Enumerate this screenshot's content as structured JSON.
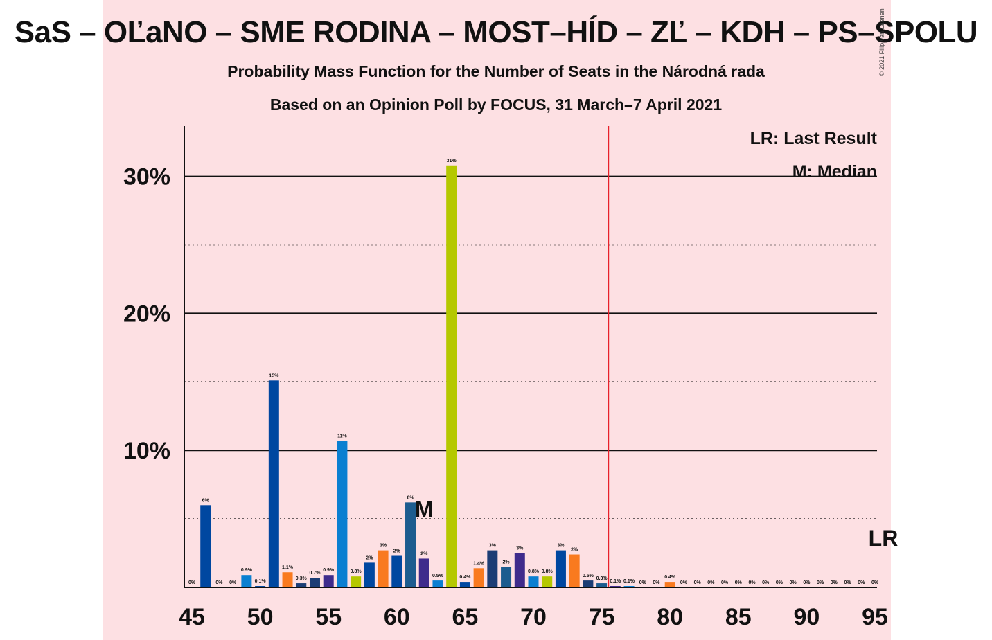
{
  "header": {
    "title": "SaS – OĽaNO – SME RODINA – MOST–HÍD – ZĽ – KDH – PS–SPOLU",
    "subtitle": "Probability Mass Function for the Number of Seats in the Národná rada",
    "subtitle2": "Based on an Opinion Poll by FOCUS, 31 March–7 April 2021",
    "copyright": "© 2021 Filip van Laenen"
  },
  "legend": {
    "last_result": "LR: Last Result",
    "median": "M: Median"
  },
  "colors": {
    "background_band": "#fde0e3",
    "majority_line": "#e8202a",
    "median_highlight": "#b5c800"
  },
  "chart_data": {
    "type": "bar",
    "title": "Probability Mass Function for the Number of Seats in the Národná rada",
    "xlim": [
      45,
      95
    ],
    "ylim": [
      0,
      33
    ],
    "x_tick_labels": [
      "45",
      "50",
      "55",
      "60",
      "65",
      "70",
      "75",
      "80",
      "85",
      "90",
      "95"
    ],
    "y_tick_labels": [
      "10%",
      "20%",
      "30%"
    ],
    "y_ticks_solid": [
      10,
      20,
      30
    ],
    "y_ticks_dotted": [
      5,
      15,
      25
    ],
    "majority_threshold": 76,
    "median_seat": 62,
    "median_label": "M",
    "last_result_seat": 95,
    "last_result_label": "LR",
    "bars": [
      {
        "x": 45,
        "value": 0.0,
        "label": "0%",
        "color": "#0047a0"
      },
      {
        "x": 46,
        "value": 6.0,
        "label": "6%",
        "color": "#0047a0"
      },
      {
        "x": 47,
        "value": 0.0,
        "label": "0%",
        "color": "#0047a0"
      },
      {
        "x": 48,
        "value": 0.0,
        "label": "0%",
        "color": "#0047a0"
      },
      {
        "x": 49,
        "value": 0.9,
        "label": "0.9%",
        "color": "#0a7fd1"
      },
      {
        "x": 50,
        "value": 0.1,
        "label": "0.1%",
        "color": "#0047a0"
      },
      {
        "x": 51,
        "value": 15.1,
        "label": "15%",
        "color": "#0047a0"
      },
      {
        "x": 52,
        "value": 1.1,
        "label": "1.1%",
        "color": "#f97a1f"
      },
      {
        "x": 53,
        "value": 0.3,
        "label": "0.3%",
        "color": "#1c3d75"
      },
      {
        "x": 54,
        "value": 0.7,
        "label": "0.7%",
        "color": "#1c3d75"
      },
      {
        "x": 55,
        "value": 0.9,
        "label": "0.9%",
        "color": "#3f2b8c"
      },
      {
        "x": 56,
        "value": 10.7,
        "label": "11%",
        "color": "#0a7fd1"
      },
      {
        "x": 57,
        "value": 0.8,
        "label": "0.8%",
        "color": "#b5c800"
      },
      {
        "x": 58,
        "value": 1.8,
        "label": "2%",
        "color": "#0047a0"
      },
      {
        "x": 59,
        "value": 2.7,
        "label": "3%",
        "color": "#f97a1f"
      },
      {
        "x": 60,
        "value": 2.3,
        "label": "2%",
        "color": "#0047a0"
      },
      {
        "x": 61,
        "value": 6.2,
        "label": "6%",
        "color": "#1c5c8f"
      },
      {
        "x": 62,
        "value": 2.1,
        "label": "2%",
        "color": "#3f2b8c"
      },
      {
        "x": 63,
        "value": 0.5,
        "label": "0.5%",
        "color": "#0a7fd1"
      },
      {
        "x": 64,
        "value": 30.8,
        "label": "31%",
        "color": "#b5c800"
      },
      {
        "x": 65,
        "value": 0.4,
        "label": "0.4%",
        "color": "#0047a0"
      },
      {
        "x": 66,
        "value": 1.4,
        "label": "1.4%",
        "color": "#f97a1f"
      },
      {
        "x": 67,
        "value": 2.7,
        "label": "3%",
        "color": "#1c3d75"
      },
      {
        "x": 68,
        "value": 1.5,
        "label": "2%",
        "color": "#1c5c8f"
      },
      {
        "x": 69,
        "value": 2.5,
        "label": "3%",
        "color": "#3f2b8c"
      },
      {
        "x": 70,
        "value": 0.8,
        "label": "0.8%",
        "color": "#0a7fd1"
      },
      {
        "x": 71,
        "value": 0.8,
        "label": "0.8%",
        "color": "#b5c800"
      },
      {
        "x": 72,
        "value": 2.7,
        "label": "3%",
        "color": "#0047a0"
      },
      {
        "x": 73,
        "value": 2.4,
        "label": "2%",
        "color": "#f97a1f"
      },
      {
        "x": 74,
        "value": 0.5,
        "label": "0.5%",
        "color": "#1c3d75"
      },
      {
        "x": 75,
        "value": 0.3,
        "label": "0.3%",
        "color": "#1c5c8f"
      },
      {
        "x": 76,
        "value": 0.1,
        "label": "0.1%",
        "color": "#3f2b8c"
      },
      {
        "x": 77,
        "value": 0.1,
        "label": "0.1%",
        "color": "#0a7fd1"
      },
      {
        "x": 78,
        "value": 0.0,
        "label": "0%",
        "color": "#b5c800"
      },
      {
        "x": 79,
        "value": 0.0,
        "label": "0%",
        "color": "#0047a0"
      },
      {
        "x": 80,
        "value": 0.4,
        "label": "0.4%",
        "color": "#f97a1f"
      },
      {
        "x": 81,
        "value": 0.0,
        "label": "0%",
        "color": "#1c3d75"
      },
      {
        "x": 82,
        "value": 0.0,
        "label": "0%",
        "color": "#1c5c8f"
      },
      {
        "x": 83,
        "value": 0.0,
        "label": "0%",
        "color": "#3f2b8c"
      },
      {
        "x": 84,
        "value": 0.0,
        "label": "0%",
        "color": "#0a7fd1"
      },
      {
        "x": 85,
        "value": 0.0,
        "label": "0%",
        "color": "#b5c800"
      },
      {
        "x": 86,
        "value": 0.0,
        "label": "0%",
        "color": "#0047a0"
      },
      {
        "x": 87,
        "value": 0.0,
        "label": "0%",
        "color": "#f97a1f"
      },
      {
        "x": 88,
        "value": 0.0,
        "label": "0%",
        "color": "#1c3d75"
      },
      {
        "x": 89,
        "value": 0.0,
        "label": "0%",
        "color": "#1c5c8f"
      },
      {
        "x": 90,
        "value": 0.0,
        "label": "0%",
        "color": "#3f2b8c"
      },
      {
        "x": 91,
        "value": 0.0,
        "label": "0%",
        "color": "#0a7fd1"
      },
      {
        "x": 92,
        "value": 0.0,
        "label": "0%",
        "color": "#b5c800"
      },
      {
        "x": 93,
        "value": 0.0,
        "label": "0%",
        "color": "#0047a0"
      },
      {
        "x": 94,
        "value": 0.0,
        "label": "0%",
        "color": "#f97a1f"
      },
      {
        "x": 95,
        "value": 0.0,
        "label": "0%",
        "color": "#1c3d75"
      }
    ]
  }
}
